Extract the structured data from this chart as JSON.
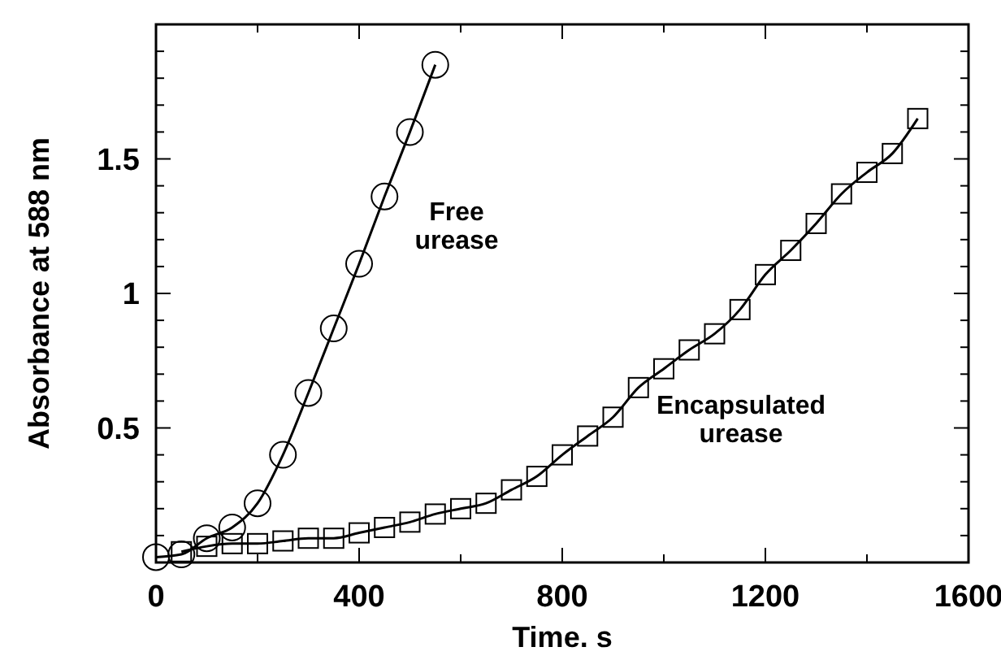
{
  "chart_data": {
    "type": "line",
    "xlabel": "Time. s",
    "ylabel": "Absorbance at 588 nm",
    "xlim": [
      0,
      1600
    ],
    "ylim": [
      0,
      2
    ],
    "xticks": [
      0,
      {
        "value": 200,
        "label": null
      },
      400,
      {
        "value": 600,
        "label": null
      },
      800,
      {
        "value": 1000,
        "label": null
      },
      1200,
      {
        "value": 1400,
        "label": null
      },
      1600
    ],
    "yticks": [
      {
        "value": 0.1,
        "label": null
      },
      {
        "value": 0.2,
        "label": null
      },
      {
        "value": 0.3,
        "label": null
      },
      {
        "value": 0.4,
        "label": null
      },
      0.5,
      {
        "value": 0.6,
        "label": null
      },
      {
        "value": 0.7,
        "label": null
      },
      {
        "value": 0.8,
        "label": null
      },
      {
        "value": 0.9,
        "label": null
      },
      1,
      {
        "value": 1.1,
        "label": null
      },
      {
        "value": 1.2,
        "label": null
      },
      {
        "value": 1.3,
        "label": null
      },
      {
        "value": 1.4,
        "label": null
      },
      1.5,
      {
        "value": 1.6,
        "label": null
      },
      {
        "value": 1.7,
        "label": null
      },
      {
        "value": 1.8,
        "label": null
      },
      {
        "value": 1.9,
        "label": null
      }
    ],
    "grid": false,
    "series": [
      {
        "color": "#000000",
        "marker": "circle",
        "x": [
          0,
          50,
          100,
          150,
          200,
          250,
          300,
          350,
          400,
          450,
          500,
          550
        ],
        "values": [
          0.02,
          0.03,
          0.09,
          0.13,
          0.22,
          0.4,
          0.63,
          0.87,
          1.11,
          1.36,
          1.6,
          1.85
        ]
      },
      {
        "color": "#000000",
        "marker": "square",
        "x": [
          50,
          100,
          150,
          200,
          250,
          300,
          350,
          400,
          450,
          500,
          550,
          600,
          650,
          700,
          750,
          800,
          850,
          900,
          950,
          1000,
          1050,
          1100,
          1150,
          1200,
          1250,
          1300,
          1350,
          1400,
          1450,
          1500
        ],
        "values": [
          0.04,
          0.06,
          0.07,
          0.07,
          0.08,
          0.09,
          0.09,
          0.11,
          0.13,
          0.15,
          0.18,
          0.2,
          0.22,
          0.27,
          0.32,
          0.4,
          0.47,
          0.54,
          0.65,
          0.72,
          0.79,
          0.85,
          0.94,
          1.07,
          1.16,
          1.26,
          1.37,
          1.45,
          1.52,
          1.65
        ]
      }
    ],
    "annotations": [
      "Free urease",
      "Encapsulated urease"
    ]
  }
}
